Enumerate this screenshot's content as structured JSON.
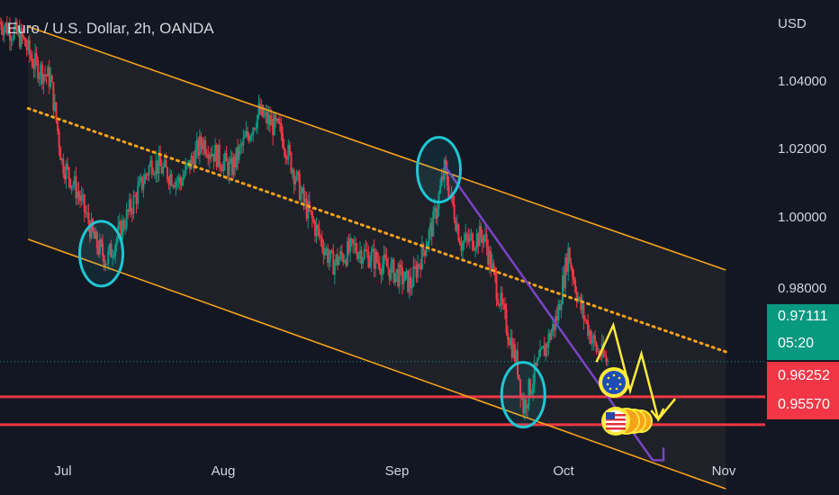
{
  "header": {
    "title": "Euro / U.S. Dollar, 2h, OANDA",
    "currency": "USD"
  },
  "y_axis": {
    "ticks": [
      "1.04000",
      "1.02000",
      "1.00000",
      "0.98000"
    ]
  },
  "x_axis": {
    "ticks": [
      "Jul",
      "Aug",
      "Sep",
      "Oct",
      "Nov"
    ]
  },
  "badges": {
    "last_price": "0.97111",
    "countdown": "05:20",
    "level_1": "0.96252",
    "level_2": "0.95570"
  },
  "colors": {
    "background": "#131722",
    "up": "#089981",
    "down": "#f23645",
    "channel": "#f7a21b",
    "trendline": "#7b44c5",
    "circle": "#1fc7d4",
    "forecast": "#ffeb3b",
    "level": "#f23645"
  },
  "chart_data": {
    "type": "candlestick",
    "title": "Euro / U.S. Dollar, 2h, OANDA",
    "ylabel": "USD",
    "ylim": [
      0.9385,
      1.0595
    ],
    "x_range": [
      "2022-06-25",
      "2022-11-08"
    ],
    "price_path": [
      {
        "date": "2022-06-25",
        "price": 1.054
      },
      {
        "date": "2022-06-29",
        "price": 1.05
      },
      {
        "date": "2022-07-01",
        "price": 1.044
      },
      {
        "date": "2022-07-04",
        "price": 1.04
      },
      {
        "date": "2022-07-06",
        "price": 1.02
      },
      {
        "date": "2022-07-09",
        "price": 1.012
      },
      {
        "date": "2022-07-12",
        "price": 1.0
      },
      {
        "date": "2022-07-14",
        "price": 0.996
      },
      {
        "date": "2022-07-18",
        "price": 1.008
      },
      {
        "date": "2022-07-22",
        "price": 1.02
      },
      {
        "date": "2022-07-27",
        "price": 1.015
      },
      {
        "date": "2022-07-31",
        "price": 1.025
      },
      {
        "date": "2022-08-05",
        "price": 1.018
      },
      {
        "date": "2022-08-10",
        "price": 1.032
      },
      {
        "date": "2022-08-14",
        "price": 1.027
      },
      {
        "date": "2022-08-18",
        "price": 1.01
      },
      {
        "date": "2022-08-23",
        "price": 0.995
      },
      {
        "date": "2022-08-27",
        "price": 0.999
      },
      {
        "date": "2022-09-01",
        "price": 0.995
      },
      {
        "date": "2022-09-06",
        "price": 0.99
      },
      {
        "date": "2022-09-10",
        "price": 1.005
      },
      {
        "date": "2022-09-12",
        "price": 1.018
      },
      {
        "date": "2022-09-15",
        "price": 1.0
      },
      {
        "date": "2022-09-19",
        "price": 1.002
      },
      {
        "date": "2022-09-22",
        "price": 0.985
      },
      {
        "date": "2022-09-25",
        "price": 0.97
      },
      {
        "date": "2022-09-26",
        "price": 0.96
      },
      {
        "date": "2022-09-28",
        "price": 0.968
      },
      {
        "date": "2022-10-02",
        "price": 0.982
      },
      {
        "date": "2022-10-04",
        "price": 0.998
      },
      {
        "date": "2022-10-06",
        "price": 0.985
      },
      {
        "date": "2022-10-09",
        "price": 0.974
      },
      {
        "date": "2022-10-11",
        "price": 0.9711
      }
    ],
    "channel": {
      "upper": [
        {
          "date": "2022-06-30",
          "price": 1.053
        },
        {
          "date": "2022-11-01",
          "price": 0.9935
        }
      ],
      "mid": [
        {
          "date": "2022-06-30",
          "price": 1.033
        },
        {
          "date": "2022-11-01",
          "price": 0.9735
        }
      ],
      "lower": [
        {
          "date": "2022-06-30",
          "price": 1.001
        },
        {
          "date": "2022-11-01",
          "price": 0.94
        }
      ]
    },
    "trendline": [
      {
        "date": "2022-09-12",
        "price": 1.019
      },
      {
        "date": "2022-10-19",
        "price": 0.947
      }
    ],
    "levels": [
      0.96252,
      0.9557
    ],
    "last_price": 0.97111,
    "forecast_path": [
      {
        "date": "2022-10-09",
        "price": 0.971
      },
      {
        "date": "2022-10-12",
        "price": 0.98
      },
      {
        "date": "2022-10-15",
        "price": 0.964
      },
      {
        "date": "2022-10-17",
        "price": 0.973
      },
      {
        "date": "2022-10-20",
        "price": 0.957
      },
      {
        "date": "2022-10-23",
        "price": 0.962
      }
    ],
    "highlight_circles": [
      {
        "date": "2022-07-13",
        "price": 0.9975
      },
      {
        "date": "2022-09-11",
        "price": 1.018
      },
      {
        "date": "2022-09-26",
        "price": 0.963
      }
    ],
    "legend": "none",
    "grid": false
  }
}
